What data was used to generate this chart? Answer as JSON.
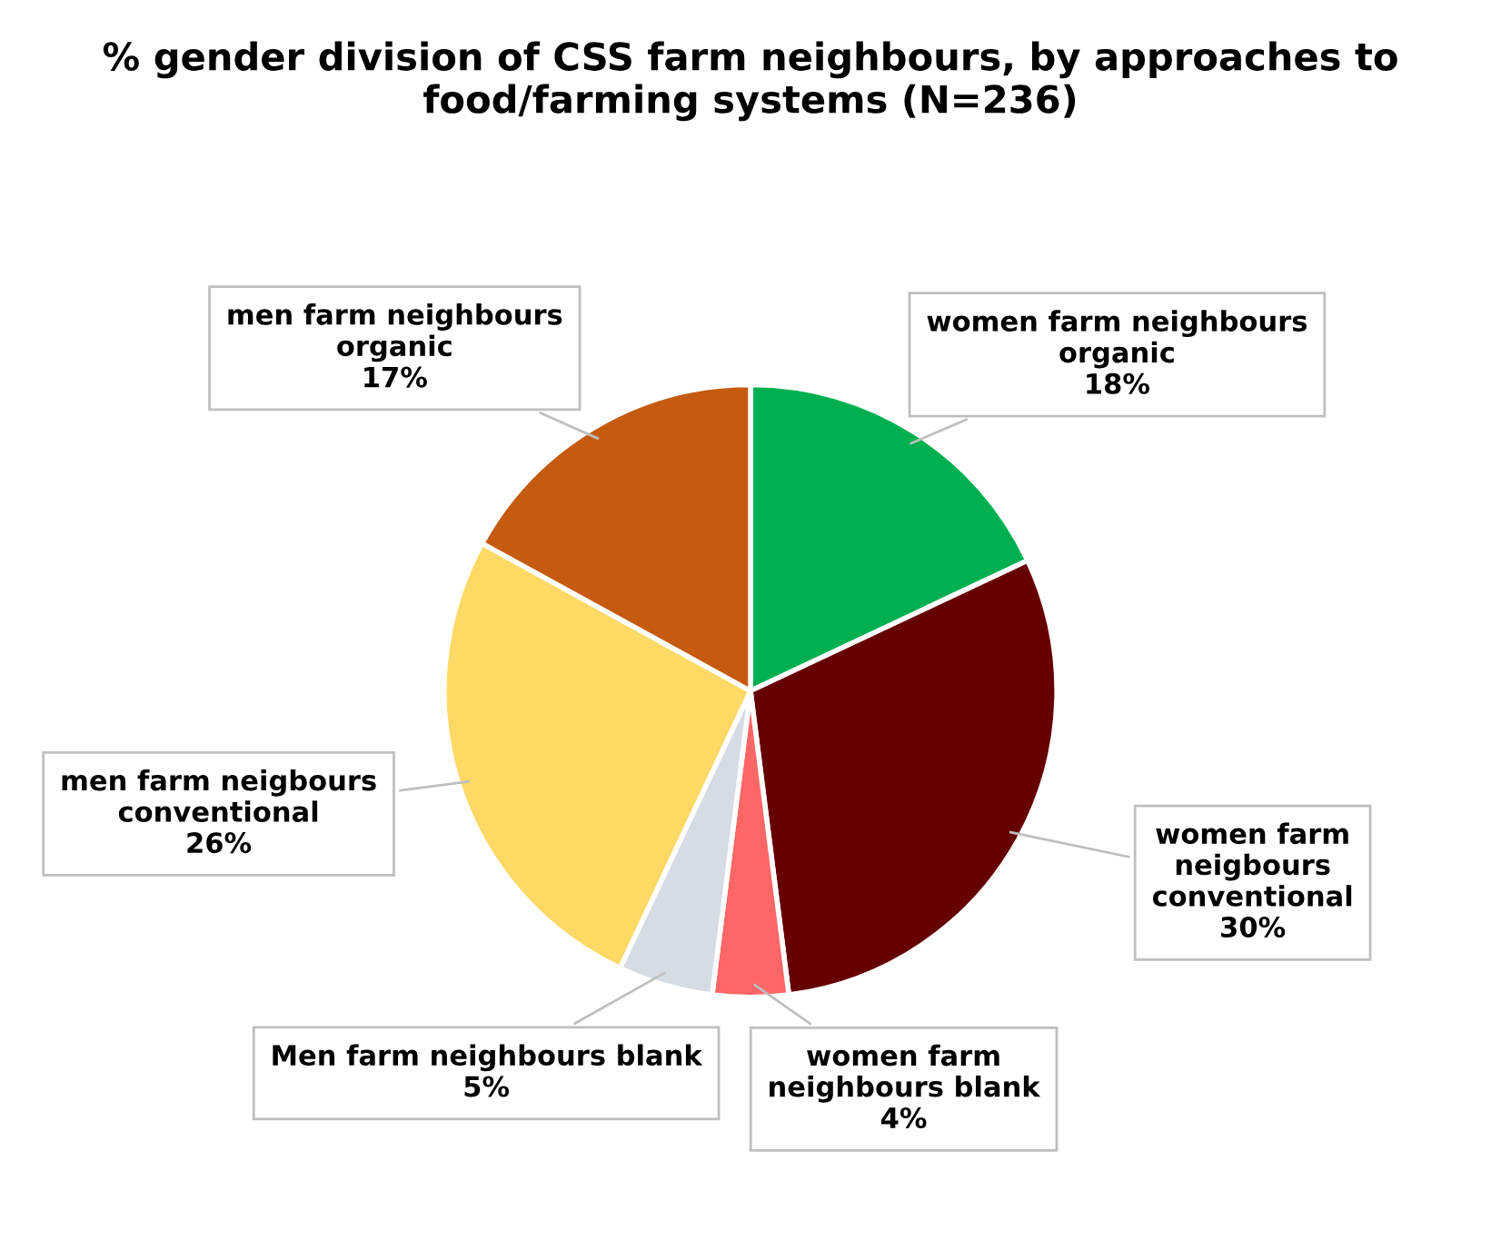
{
  "chart_data": {
    "type": "pie",
    "title": "% gender division of CSS farm neighbours, by approaches to\nfood/farming systems (N=236)",
    "categories": [
      "women farm neighbours\norganic",
      "women farm\nneigbours\nconventional",
      "women farm\nneighbours blank",
      "Men farm neighbours blank",
      "men farm neigbours\nconventional",
      "men farm neighbours\norganic"
    ],
    "values": [
      18,
      30,
      4,
      5,
      26,
      17
    ],
    "value_labels": [
      "18%",
      "30%",
      "4%",
      "5%",
      "26%",
      "17%"
    ],
    "colors": [
      "#00b050",
      "#660000",
      "#ff6666",
      "#d6dce4",
      "#ffd966",
      "#c55a11"
    ],
    "legend": false
  }
}
